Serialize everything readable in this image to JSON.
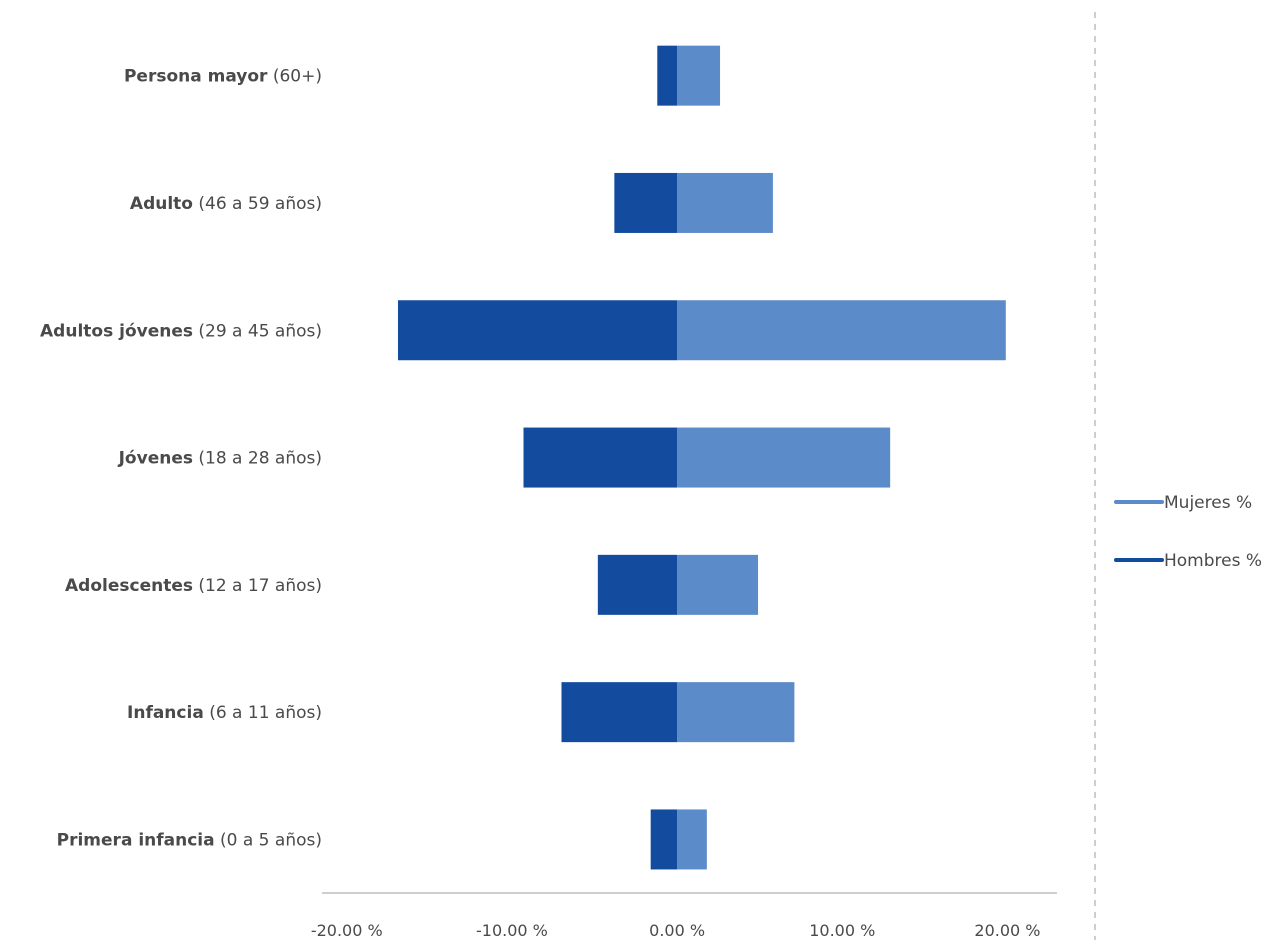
{
  "chart_data": {
    "type": "bar",
    "orientation": "horizontal",
    "stacked": "diverging",
    "title": "",
    "xlabel": "",
    "ylabel": "",
    "categories": [
      {
        "bold": "Persona mayor",
        "rest": " (60+)"
      },
      {
        "bold": "Adulto",
        "rest": " (46 a 59 años)"
      },
      {
        "bold": "Adultos jóvenes",
        "rest": " (29 a 45 años)"
      },
      {
        "bold": "Jóvenes",
        "rest": " (18 a 28 años)"
      },
      {
        "bold": "Adolescentes",
        "rest": " (12 a 17 años)"
      },
      {
        "bold": "Infancia",
        "rest": " (6 a 11 años)"
      },
      {
        "bold": "Primera infancia",
        "rest": " (0 a 5 años)"
      }
    ],
    "series": [
      {
        "name": "Mujeres %",
        "color": "#5b8bc9",
        "values": [
          2.6,
          5.8,
          19.9,
          12.9,
          4.9,
          7.1,
          1.8
        ]
      },
      {
        "name": "Hombres %",
        "color": "#134b9e",
        "values": [
          -1.2,
          -3.8,
          -16.9,
          -9.3,
          -4.8,
          -7.0,
          -1.6
        ]
      }
    ],
    "xlim": [
      -21.5,
      23
    ],
    "x_ticks": [
      -20,
      -10,
      0,
      10,
      20
    ],
    "x_tick_labels": [
      "-20.00 %",
      "-10.00 %",
      "0.00 %",
      "10.00 %",
      "20.00 %"
    ],
    "legend_position": "right",
    "grid": false
  }
}
